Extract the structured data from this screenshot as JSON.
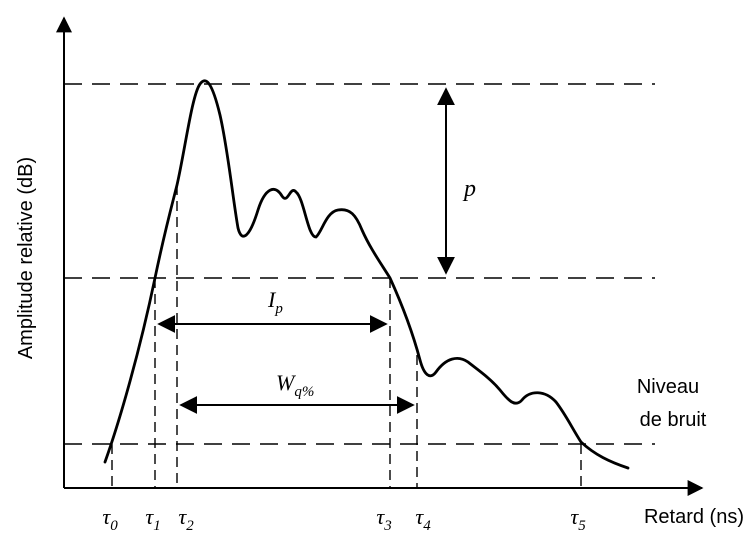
{
  "axes": {
    "y_label": "Amplitude relative (dB)",
    "x_label": "Retard (ns)"
  },
  "levels": {
    "noise_label_line1": "Niveau",
    "noise_label_line2": "de bruit"
  },
  "annotations": {
    "p": "p",
    "ip_main": "I",
    "ip_sub": "p",
    "wq_main": "W",
    "wq_sub": "q%"
  },
  "tau_markers": [
    {
      "main": "τ",
      "sub": "0"
    },
    {
      "main": "τ",
      "sub": "1"
    },
    {
      "main": "τ",
      "sub": "2"
    },
    {
      "main": "τ",
      "sub": "3"
    },
    {
      "main": "τ",
      "sub": "4"
    },
    {
      "main": "τ",
      "sub": "5"
    }
  ]
}
